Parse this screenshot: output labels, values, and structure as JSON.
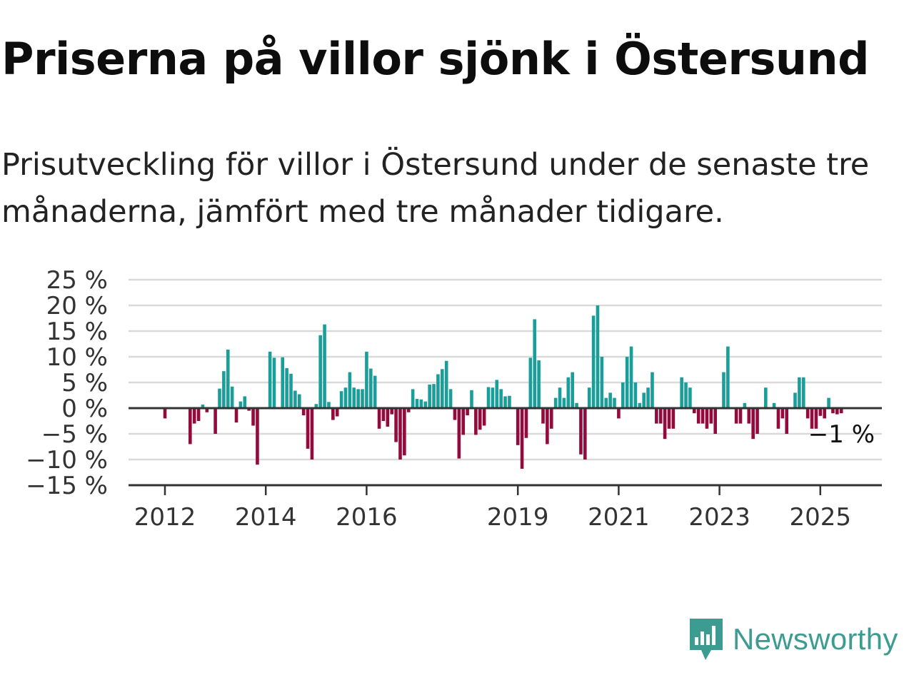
{
  "title": "Priserna på villor sjönk i Östersund",
  "subtitle": "Prisutveckling för villor i Östersund under de senaste tre månaderna, jämfört med tre månader tidigare.",
  "brand": {
    "name": "Newsworthy",
    "icon": "newsworthy-logo-icon",
    "color": "#3d9c92"
  },
  "chart_data": {
    "type": "bar",
    "title": "Priserna på villor sjönk i Östersund",
    "colors": {
      "positive": "#1a9e99",
      "negative": "#930a3c"
    },
    "grid": true,
    "ylim": [
      -15,
      25
    ],
    "yticks": [
      25,
      20,
      15,
      10,
      5,
      0,
      -5,
      -10,
      -15
    ],
    "ytick_labels": [
      "25 %",
      "20 %",
      "15 %",
      "10 %",
      "5 %",
      "0 %",
      "−5 %",
      "−10 %",
      "−15 %"
    ],
    "xticks": [
      {
        "label": "2012",
        "year": 2012
      },
      {
        "label": "2014",
        "year": 2014
      },
      {
        "label": "2016",
        "year": 2016
      },
      {
        "label": "2019",
        "year": 2019
      },
      {
        "label": "2021",
        "year": 2021
      },
      {
        "label": "2023",
        "year": 2023
      },
      {
        "label": "2025",
        "year": 2025
      }
    ],
    "end_label": "−1 %",
    "series": [
      {
        "values": [
          {
            "date": "2012-01",
            "value": -2
          },
          {
            "date": "2012-07",
            "value": -7
          },
          {
            "date": "2012-08",
            "value": -3
          },
          {
            "date": "2012-09",
            "value": -2.5
          },
          {
            "date": "2012-10",
            "value": 0.7
          },
          {
            "date": "2012-11",
            "value": -0.8
          },
          {
            "date": "2013-01",
            "value": -5
          },
          {
            "date": "2013-02",
            "value": 3.8
          },
          {
            "date": "2013-03",
            "value": 7.2
          },
          {
            "date": "2013-04",
            "value": 11.4
          },
          {
            "date": "2013-05",
            "value": 4.2
          },
          {
            "date": "2013-06",
            "value": -2.8
          },
          {
            "date": "2013-07",
            "value": 1.3
          },
          {
            "date": "2013-08",
            "value": 2.3
          },
          {
            "date": "2013-09",
            "value": -0.5
          },
          {
            "date": "2013-10",
            "value": -3.4
          },
          {
            "date": "2013-11",
            "value": -11
          },
          {
            "date": "2014-02",
            "value": 11
          },
          {
            "date": "2014-03",
            "value": 9.8
          },
          {
            "date": "2014-05",
            "value": 9.9
          },
          {
            "date": "2014-06",
            "value": 7.8
          },
          {
            "date": "2014-07",
            "value": 6.7
          },
          {
            "date": "2014-08",
            "value": 3.4
          },
          {
            "date": "2014-09",
            "value": 2.7
          },
          {
            "date": "2014-10",
            "value": -1.4
          },
          {
            "date": "2014-11",
            "value": -7.9
          },
          {
            "date": "2014-12",
            "value": -10
          },
          {
            "date": "2015-01",
            "value": 0.8
          },
          {
            "date": "2015-02",
            "value": 14.2
          },
          {
            "date": "2015-03",
            "value": 16.3
          },
          {
            "date": "2015-04",
            "value": 1.2
          },
          {
            "date": "2015-05",
            "value": -2.3
          },
          {
            "date": "2015-06",
            "value": -1.6
          },
          {
            "date": "2015-07",
            "value": 3.3
          },
          {
            "date": "2015-08",
            "value": 4
          },
          {
            "date": "2015-09",
            "value": 7
          },
          {
            "date": "2015-10",
            "value": 4
          },
          {
            "date": "2015-11",
            "value": 3.7
          },
          {
            "date": "2015-12",
            "value": 3.7
          },
          {
            "date": "2016-01",
            "value": 11
          },
          {
            "date": "2016-02",
            "value": 7.7
          },
          {
            "date": "2016-03",
            "value": 6.3
          },
          {
            "date": "2016-04",
            "value": -4
          },
          {
            "date": "2016-05",
            "value": -2.5
          },
          {
            "date": "2016-06",
            "value": -3.6
          },
          {
            "date": "2016-07",
            "value": -1.2
          },
          {
            "date": "2016-08",
            "value": -6.6
          },
          {
            "date": "2016-09",
            "value": -10
          },
          {
            "date": "2016-10",
            "value": -9.2
          },
          {
            "date": "2016-11",
            "value": -0.8
          },
          {
            "date": "2016-12",
            "value": 3.7
          },
          {
            "date": "2017-01",
            "value": 1.8
          },
          {
            "date": "2017-02",
            "value": 1.7
          },
          {
            "date": "2017-03",
            "value": 1.3
          },
          {
            "date": "2017-04",
            "value": 4.6
          },
          {
            "date": "2017-05",
            "value": 4.7
          },
          {
            "date": "2017-06",
            "value": 6.6
          },
          {
            "date": "2017-07",
            "value": 7.6
          },
          {
            "date": "2017-08",
            "value": 9.2
          },
          {
            "date": "2017-09",
            "value": 3.7
          },
          {
            "date": "2017-10",
            "value": -2.3
          },
          {
            "date": "2017-11",
            "value": -9.8
          },
          {
            "date": "2017-12",
            "value": -5.2
          },
          {
            "date": "2018-01",
            "value": -1.4
          },
          {
            "date": "2018-02",
            "value": 3.5
          },
          {
            "date": "2018-03",
            "value": -5.2
          },
          {
            "date": "2018-04",
            "value": -4.2
          },
          {
            "date": "2018-05",
            "value": -3.4
          },
          {
            "date": "2018-06",
            "value": 4.1
          },
          {
            "date": "2018-07",
            "value": 4
          },
          {
            "date": "2018-08",
            "value": 5.5
          },
          {
            "date": "2018-09",
            "value": 3.7
          },
          {
            "date": "2018-10",
            "value": 2.3
          },
          {
            "date": "2018-11",
            "value": 2.4
          },
          {
            "date": "2019-01",
            "value": -7.2
          },
          {
            "date": "2019-02",
            "value": -11.8
          },
          {
            "date": "2019-03",
            "value": -5.8
          },
          {
            "date": "2019-04",
            "value": 9.8
          },
          {
            "date": "2019-05",
            "value": 17.3
          },
          {
            "date": "2019-06",
            "value": 9.3
          },
          {
            "date": "2019-07",
            "value": -3
          },
          {
            "date": "2019-08",
            "value": -7
          },
          {
            "date": "2019-09",
            "value": -4
          },
          {
            "date": "2019-10",
            "value": 2
          },
          {
            "date": "2019-11",
            "value": 4
          },
          {
            "date": "2019-12",
            "value": 2
          },
          {
            "date": "2020-01",
            "value": 6
          },
          {
            "date": "2020-02",
            "value": 7
          },
          {
            "date": "2020-03",
            "value": 1
          },
          {
            "date": "2020-04",
            "value": -9
          },
          {
            "date": "2020-05",
            "value": -10
          },
          {
            "date": "2020-06",
            "value": 4
          },
          {
            "date": "2020-07",
            "value": 18
          },
          {
            "date": "2020-08",
            "value": 20
          },
          {
            "date": "2020-09",
            "value": 10
          },
          {
            "date": "2020-10",
            "value": 2
          },
          {
            "date": "2020-11",
            "value": 3
          },
          {
            "date": "2020-12",
            "value": 2
          },
          {
            "date": "2021-01",
            "value": -2
          },
          {
            "date": "2021-02",
            "value": 5
          },
          {
            "date": "2021-03",
            "value": 10
          },
          {
            "date": "2021-04",
            "value": 12
          },
          {
            "date": "2021-05",
            "value": 5
          },
          {
            "date": "2021-06",
            "value": 1
          },
          {
            "date": "2021-07",
            "value": 3
          },
          {
            "date": "2021-08",
            "value": 4
          },
          {
            "date": "2021-09",
            "value": 7
          },
          {
            "date": "2021-10",
            "value": -3
          },
          {
            "date": "2021-11",
            "value": -3
          },
          {
            "date": "2021-12",
            "value": -6
          },
          {
            "date": "2022-01",
            "value": -4
          },
          {
            "date": "2022-02",
            "value": -4
          },
          {
            "date": "2022-04",
            "value": 6
          },
          {
            "date": "2022-05",
            "value": 5
          },
          {
            "date": "2022-06",
            "value": 4
          },
          {
            "date": "2022-07",
            "value": -1
          },
          {
            "date": "2022-08",
            "value": -3
          },
          {
            "date": "2022-09",
            "value": -3
          },
          {
            "date": "2022-10",
            "value": -4
          },
          {
            "date": "2022-11",
            "value": -3
          },
          {
            "date": "2022-12",
            "value": -5
          },
          {
            "date": "2023-02",
            "value": 7
          },
          {
            "date": "2023-03",
            "value": 12
          },
          {
            "date": "2023-05",
            "value": -3
          },
          {
            "date": "2023-06",
            "value": -3
          },
          {
            "date": "2023-07",
            "value": 1
          },
          {
            "date": "2023-08",
            "value": -3
          },
          {
            "date": "2023-09",
            "value": -6
          },
          {
            "date": "2023-10",
            "value": -5
          },
          {
            "date": "2023-12",
            "value": 4
          },
          {
            "date": "2024-02",
            "value": 1
          },
          {
            "date": "2024-03",
            "value": -4
          },
          {
            "date": "2024-04",
            "value": -2
          },
          {
            "date": "2024-05",
            "value": -5
          },
          {
            "date": "2024-07",
            "value": 3
          },
          {
            "date": "2024-08",
            "value": 6
          },
          {
            "date": "2024-09",
            "value": 6
          },
          {
            "date": "2024-10",
            "value": -2
          },
          {
            "date": "2024-11",
            "value": -4
          },
          {
            "date": "2024-12",
            "value": -4
          },
          {
            "date": "2025-01",
            "value": -1.5
          },
          {
            "date": "2025-02",
            "value": -2
          },
          {
            "date": "2025-03",
            "value": 2
          },
          {
            "date": "2025-04",
            "value": -1
          },
          {
            "date": "2025-05",
            "value": -1.2
          },
          {
            "date": "2025-06",
            "value": -1
          }
        ]
      }
    ]
  }
}
